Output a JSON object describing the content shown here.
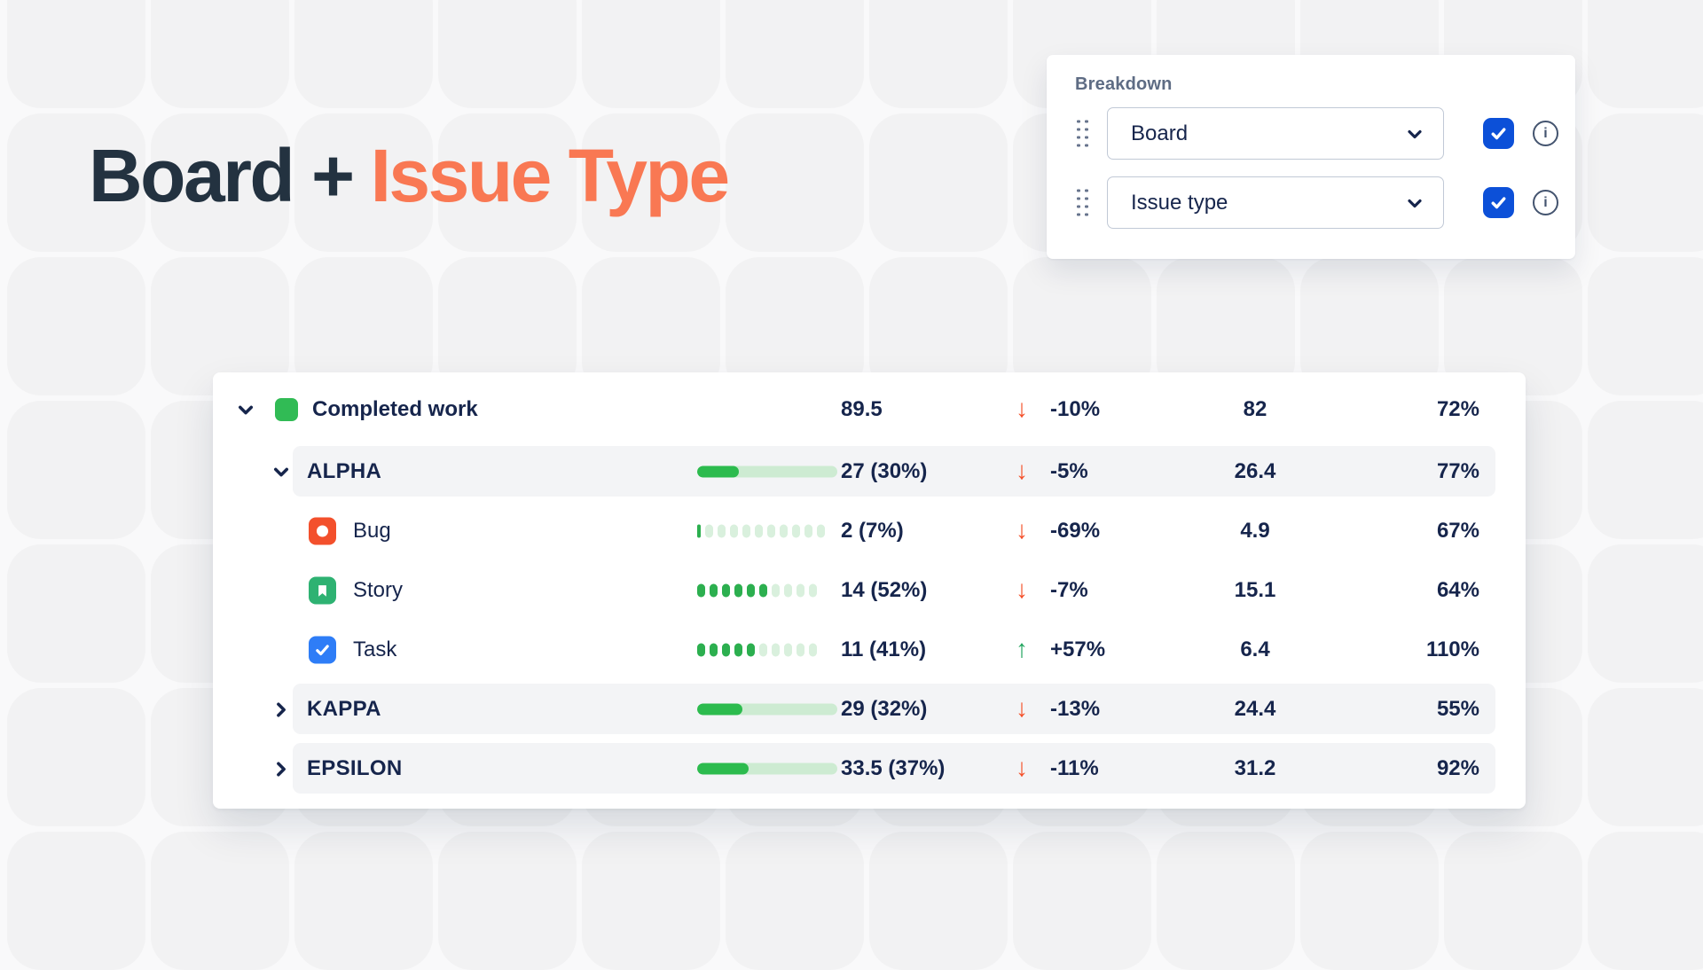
{
  "title": {
    "prefix": "Board +",
    "highlight": "Issue Type"
  },
  "breakdown": {
    "label": "Breakdown",
    "rows": [
      {
        "value": "Board",
        "checked": true
      },
      {
        "value": "Issue type",
        "checked": true
      }
    ]
  },
  "table": {
    "rows": [
      {
        "level": 0,
        "expand": "down",
        "swatch": "green",
        "label": "Completed work",
        "value": "89.5",
        "trend": "down",
        "change": "-10%",
        "forecast": "82",
        "percent": "72%",
        "band": false
      },
      {
        "level": 1,
        "expand": "down",
        "label": "ALPHA",
        "bar_percent": 30,
        "value": "27 (30%)",
        "trend": "down",
        "change": "-5%",
        "forecast": "26.4",
        "percent": "77%",
        "band": true
      },
      {
        "level": 2,
        "icon": "bug",
        "label": "Bug",
        "dots_filled": 0.3,
        "dots_total": 10,
        "value": "2 (7%)",
        "trend": "down",
        "change": "-69%",
        "forecast": "4.9",
        "percent": "67%",
        "band": false
      },
      {
        "level": 2,
        "icon": "story",
        "label": "Story",
        "dots_filled": 6,
        "dots_total": 10,
        "value": "14 (52%)",
        "trend": "down",
        "change": "-7%",
        "forecast": "15.1",
        "percent": "64%",
        "band": false
      },
      {
        "level": 2,
        "icon": "task",
        "label": "Task",
        "dots_filled": 5,
        "dots_total": 10,
        "value": "11 (41%)",
        "trend": "up",
        "change": "+57%",
        "forecast": "6.4",
        "percent": "110%",
        "band": false
      },
      {
        "level": 1,
        "expand": "right",
        "label": "KAPPA",
        "bar_percent": 32,
        "value": "29 (32%)",
        "trend": "down",
        "change": "-13%",
        "forecast": "24.4",
        "percent": "55%",
        "band": true
      },
      {
        "level": 1,
        "expand": "right",
        "label": "EPSILON",
        "bar_percent": 37,
        "value": "33.5 (37%)",
        "trend": "down",
        "change": "-11%",
        "forecast": "31.2",
        "percent": "92%",
        "band": true
      }
    ]
  },
  "colors": {
    "title_dark": "#233240",
    "accent_orange": "#F97853",
    "navy_text": "#16254C",
    "checkbox_blue": "#0C50D8",
    "bar_green": "#2CBB4E",
    "bar_track": "#CDEBD2",
    "swatch_green": "#31BB55",
    "bug_red": "#F3502C",
    "story_green": "#2EB272",
    "task_blue": "#2E7DF7",
    "trend_down_red": "#F4502A",
    "trend_up_green": "#1EA35B",
    "row_band": "#F3F4F6",
    "panel_label_slate": "#5E6C84"
  }
}
